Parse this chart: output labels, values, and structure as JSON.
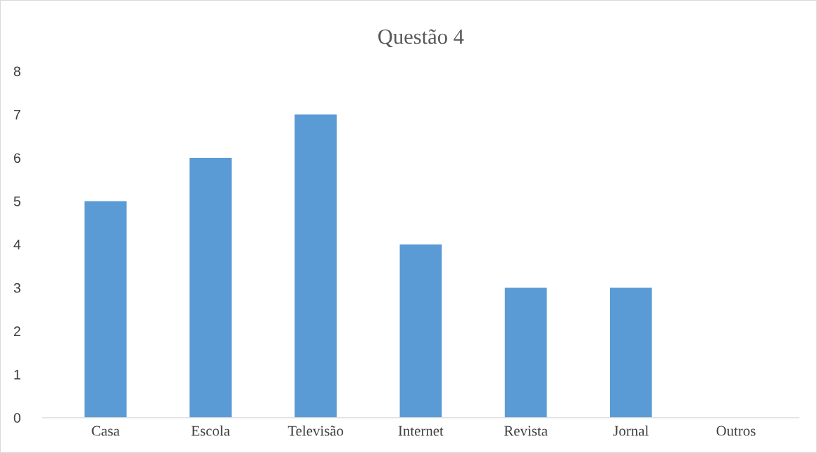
{
  "chart_data": {
    "type": "bar",
    "title": "Questão 4",
    "categories": [
      "Casa",
      "Escola",
      "Televisão",
      "Internet",
      "Revista",
      "Jornal",
      "Outros"
    ],
    "values": [
      5,
      6,
      7,
      4,
      3,
      3,
      0
    ],
    "color": "#5b9bd5",
    "ylim": [
      0,
      8
    ],
    "yticks": [
      0,
      1,
      2,
      3,
      4,
      5,
      6,
      7,
      8
    ],
    "grid": false,
    "legend": false
  }
}
